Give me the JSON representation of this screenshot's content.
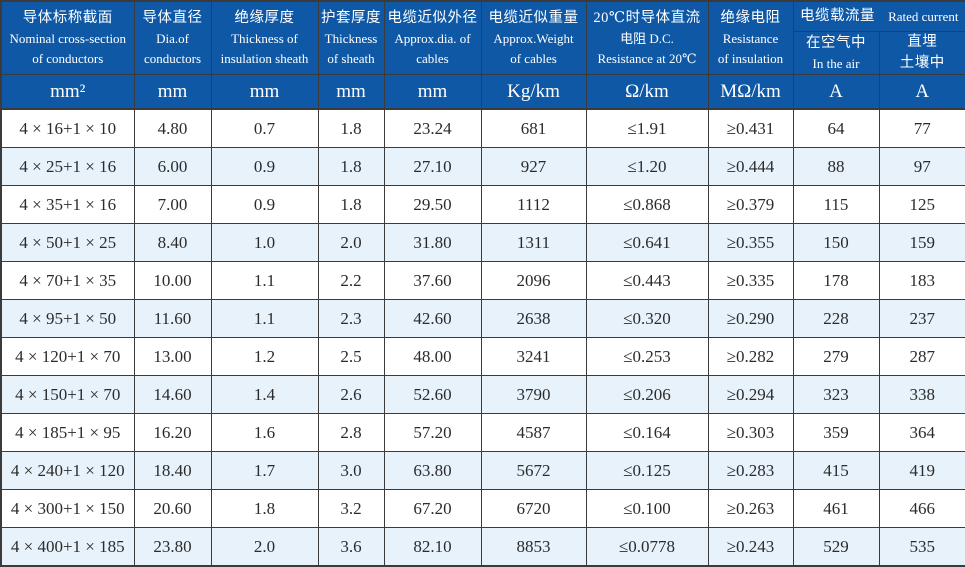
{
  "table": {
    "columns": [
      {
        "lines": [
          "导体标称截面",
          "Nominal cross-section",
          "of conductors"
        ],
        "unit": "mm²"
      },
      {
        "lines": [
          "导体直径",
          "Dia.of",
          "conductors"
        ],
        "unit": "mm"
      },
      {
        "lines": [
          "绝缘厚度",
          "Thickness of",
          "insulation sheath"
        ],
        "unit": "mm"
      },
      {
        "lines": [
          "护套厚度",
          "Thickness",
          "of sheath"
        ],
        "unit": "mm"
      },
      {
        "lines": [
          "电缆近似外径",
          "Approx.dia. of",
          "cables"
        ],
        "unit": "mm"
      },
      {
        "lines": [
          "电缆近似重量",
          "Approx.Weight",
          "of cables"
        ],
        "unit": "Kg/km"
      },
      {
        "lines": [
          "20℃时导体直流",
          "电阻 D.C.",
          "Resistance at 20℃"
        ],
        "unit": "Ω/km"
      },
      {
        "lines": [
          "绝缘电阻",
          "Resistance",
          "of insulation"
        ],
        "unit": "MΩ/km"
      }
    ],
    "rated_current_group": {
      "zh": "电缆载流量",
      "en": "Rated current",
      "sub": [
        {
          "lines": [
            "在空气中",
            "In the air"
          ],
          "unit": "A"
        },
        {
          "lines": [
            "直埋",
            "土壤中"
          ],
          "unit": "A"
        }
      ]
    },
    "rows": [
      [
        "4 × 16+1 × 10",
        "4.80",
        "0.7",
        "1.8",
        "23.24",
        "681",
        "≤1.91",
        "≥0.431",
        "64",
        "77"
      ],
      [
        "4 × 25+1 × 16",
        "6.00",
        "0.9",
        "1.8",
        "27.10",
        "927",
        "≤1.20",
        "≥0.444",
        "88",
        "97"
      ],
      [
        "4 × 35+1 × 16",
        "7.00",
        "0.9",
        "1.8",
        "29.50",
        "1112",
        "≤0.868",
        "≥0.379",
        "115",
        "125"
      ],
      [
        "4 × 50+1 × 25",
        "8.40",
        "1.0",
        "2.0",
        "31.80",
        "1311",
        "≤0.641",
        "≥0.355",
        "150",
        "159"
      ],
      [
        "4 × 70+1 × 35",
        "10.00",
        "1.1",
        "2.2",
        "37.60",
        "2096",
        "≤0.443",
        "≥0.335",
        "178",
        "183"
      ],
      [
        "4 × 95+1 × 50",
        "11.60",
        "1.1",
        "2.3",
        "42.60",
        "2638",
        "≤0.320",
        "≥0.290",
        "228",
        "237"
      ],
      [
        "4 × 120+1 × 70",
        "13.00",
        "1.2",
        "2.5",
        "48.00",
        "3241",
        "≤0.253",
        "≥0.282",
        "279",
        "287"
      ],
      [
        "4 × 150+1 × 70",
        "14.60",
        "1.4",
        "2.6",
        "52.60",
        "3790",
        "≤0.206",
        "≥0.294",
        "323",
        "338"
      ],
      [
        "4 × 185+1 × 95",
        "16.20",
        "1.6",
        "2.8",
        "57.20",
        "4587",
        "≤0.164",
        "≥0.303",
        "359",
        "364"
      ],
      [
        "4 × 240+1 × 120",
        "18.40",
        "1.7",
        "3.0",
        "63.80",
        "5672",
        "≤0.125",
        "≥0.283",
        "415",
        "419"
      ],
      [
        "4 × 300+1 × 150",
        "20.60",
        "1.8",
        "3.2",
        "67.20",
        "6720",
        "≤0.100",
        "≥0.263",
        "461",
        "466"
      ],
      [
        "4 × 400+1 × 185",
        "23.80",
        "2.0",
        "3.6",
        "82.10",
        "8853",
        "≤0.0778",
        "≥0.243",
        "529",
        "535"
      ]
    ],
    "colors": {
      "header_background": "#0e58a6",
      "header_text": "#ffffff",
      "alt_row_background": "#e7f2fb",
      "grid_border": "#3b3b3b",
      "body_text": "#2b2b2b"
    }
  }
}
